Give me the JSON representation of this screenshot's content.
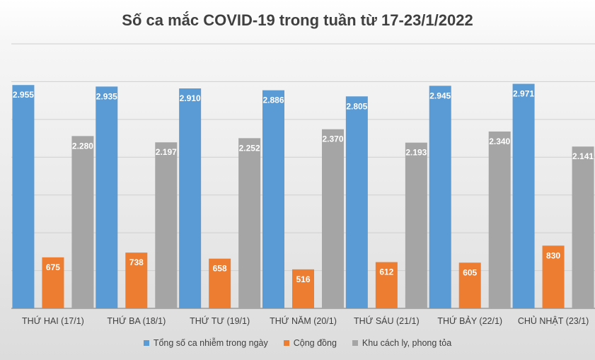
{
  "chart_data": {
    "type": "bar",
    "title": "Số ca mắc COVID-19 trong tuần từ 17-23/1/2022",
    "categories": [
      "THỨ HAI (17/1)",
      "THỨ BA (18/1)",
      "THỨ TƯ (19/1)",
      "THỨ NĂM (20/1)",
      "THỨ SÁU (21/1)",
      "THỨ BẢY (22/1)",
      "CHỦ NHẬT (23/1)"
    ],
    "series": [
      {
        "name": "Tổng số ca nhiễm trong ngày",
        "color": "#5b9bd5",
        "values": [
          2955,
          2935,
          2910,
          2886,
          2805,
          2945,
          2971
        ],
        "labels": [
          "2.955",
          "2.935",
          "2.910",
          "2.886",
          "2.805",
          "2.945",
          "2.971"
        ]
      },
      {
        "name": "Cộng đồng",
        "color": "#ed7d31",
        "values": [
          675,
          738,
          658,
          516,
          612,
          605,
          830
        ],
        "labels": [
          "675",
          "738",
          "658",
          "516",
          "612",
          "605",
          "830"
        ]
      },
      {
        "name": "Khu cách ly, phong tỏa",
        "color": "#a5a5a5",
        "values": [
          2280,
          2197,
          2252,
          2370,
          2193,
          2340,
          2141
        ],
        "labels": [
          "2.280",
          "2.197",
          "2.252",
          "2.370",
          "2.193",
          "2.340",
          "2.141"
        ]
      }
    ],
    "ylim": [
      0,
      3500
    ],
    "grid": true,
    "legend": "bottom"
  }
}
